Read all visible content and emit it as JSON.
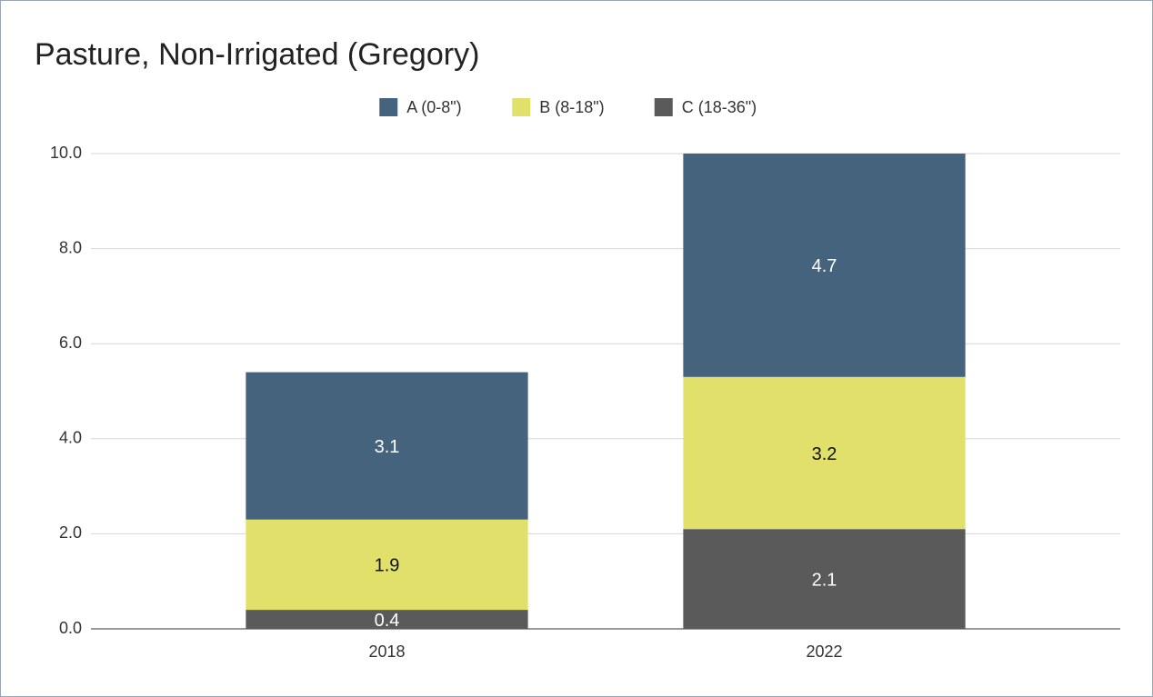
{
  "chart_data": {
    "type": "stacked_bar",
    "title": "Pasture, Non-Irrigated (Gregory)",
    "categories": [
      "2018",
      "2022"
    ],
    "series": [
      {
        "name": "A (0-8\")",
        "color": "#46637d",
        "values": [
          3.1,
          4.7
        ]
      },
      {
        "name": "B (8-18\")",
        "color": "#e0e06b",
        "values": [
          1.9,
          3.2
        ]
      },
      {
        "name": "C (18-36\")",
        "color": "#5a5a5a",
        "values": [
          0.4,
          2.1
        ]
      }
    ],
    "ylim": [
      0,
      10
    ],
    "yticks": [
      {
        "value": 0,
        "label": "0.0"
      },
      {
        "value": 2,
        "label": "2.0"
      },
      {
        "value": 4,
        "label": "4.0"
      },
      {
        "value": 6,
        "label": "6.0"
      },
      {
        "value": 8,
        "label": "8.0"
      },
      {
        "value": 10,
        "label": "10.0"
      }
    ],
    "grid": true,
    "legend": "top"
  }
}
